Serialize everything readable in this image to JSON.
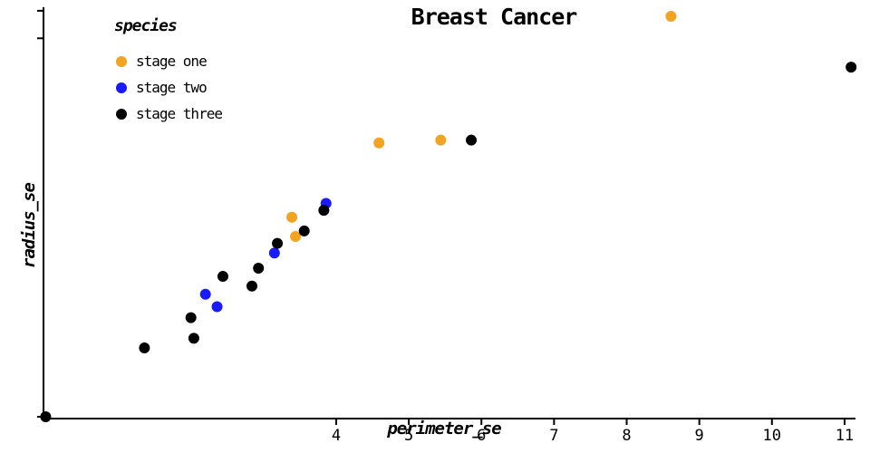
{
  "title": "Breast Cancer",
  "legend": {
    "title": "species",
    "items": [
      {
        "label": "stage one",
        "color": "#f2a322"
      },
      {
        "label": "stage two",
        "color": "#1a1aff"
      },
      {
        "label": "stage three",
        "color": "#000000"
      }
    ]
  },
  "chart_data": {
    "type": "scatter",
    "title": "Breast Cancer",
    "xlabel": "perimeter_se",
    "ylabel": "radius_se",
    "xlim": [
      0,
      11.3
    ],
    "ylim": [
      0,
      3.05
    ],
    "xticks": [
      4,
      5,
      6,
      7,
      8,
      9,
      10,
      11
    ],
    "yticks_unlabeled": [
      0,
      2.75,
      2.95
    ],
    "grid": false,
    "legend_position": "upper left",
    "axis_color": "#000000",
    "series": [
      {
        "name": "stage one",
        "color": "#f2a322",
        "points": [
          [
            8.61,
            2.91
          ],
          [
            5.44,
            2.01
          ],
          [
            4.59,
            1.99
          ],
          [
            3.44,
            1.31
          ],
          [
            3.39,
            1.45
          ]
        ]
      },
      {
        "name": "stage two",
        "color": "#1a1aff",
        "points": [
          [
            3.86,
            1.55
          ],
          [
            3.15,
            1.19
          ],
          [
            2.36,
            0.8
          ],
          [
            2.2,
            0.89
          ]
        ]
      },
      {
        "name": "stage three",
        "color": "#000000",
        "points": [
          [
            11.09,
            2.54
          ],
          [
            5.86,
            2.01
          ],
          [
            3.83,
            1.5
          ],
          [
            3.56,
            1.35
          ],
          [
            3.19,
            1.26
          ],
          [
            2.93,
            1.08
          ],
          [
            2.84,
            0.95
          ],
          [
            2.44,
            1.02
          ],
          [
            2.0,
            0.72
          ],
          [
            2.04,
            0.57
          ],
          [
            1.36,
            0.5
          ],
          [
            0.0,
            0.0
          ]
        ]
      }
    ]
  }
}
